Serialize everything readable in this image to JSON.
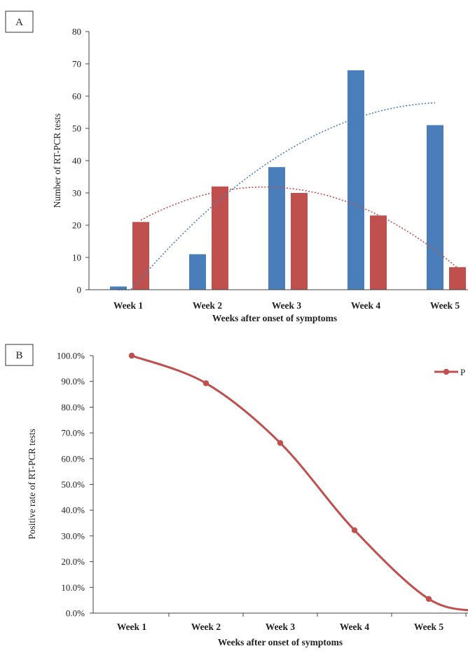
{
  "chart_data": [
    {
      "panel": "A",
      "type": "bar",
      "categories": [
        "Week 1",
        "Week 2",
        "Week 3",
        "Week 4",
        "Week 5"
      ],
      "series": [
        {
          "values": [
            1,
            11,
            38,
            68,
            51
          ],
          "color": "#4a7ebb"
        },
        {
          "values": [
            21,
            32,
            30,
            23,
            7
          ],
          "color": "#c0504d"
        }
      ],
      "trendlines": [
        {
          "type": "polynomial",
          "style": "dotted",
          "color": "#4a7ebb"
        },
        {
          "type": "polynomial",
          "style": "dotted",
          "color": "#c0504d"
        }
      ],
      "xlabel": "Weeks after onset of symptoms",
      "ylabel": "Number of RT-PCR tests",
      "ylim": [
        0,
        80
      ],
      "yticks": [
        "0",
        "10",
        "20",
        "30",
        "40",
        "50",
        "60",
        "70",
        "80"
      ],
      "grid": false
    },
    {
      "panel": "B",
      "type": "line",
      "categories": [
        "Week 1",
        "Week 2",
        "Week 3",
        "Week 4",
        "Week 5"
      ],
      "series": [
        {
          "values": [
            100.0,
            89.3,
            66.1,
            32.2,
            5.5
          ],
          "color": "#c0504d",
          "smooth": true,
          "marker": "circle"
        }
      ],
      "legend_entry_visible": "P",
      "legend_position": "top-right",
      "xlabel": "Weeks after onset of symptoms",
      "ylabel": "Positive rate of RT-PCR tests",
      "ylim": [
        0,
        100
      ],
      "yticks": [
        "0.0%",
        "10.0%",
        "20.0%",
        "30.0%",
        "40.0%",
        "50.0%",
        "60.0%",
        "70.0%",
        "80.0%",
        "90.0%",
        "100.0%"
      ],
      "grid": false
    }
  ]
}
